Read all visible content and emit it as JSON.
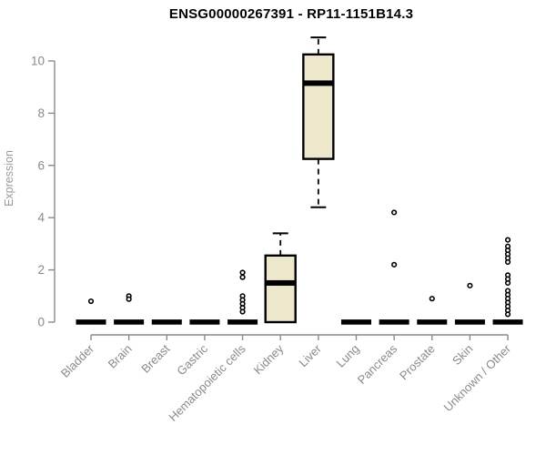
{
  "chart_data": {
    "type": "boxplot",
    "title": "ENSG00000267391 - RP11-1151B14.3",
    "ylabel": "Expression",
    "xlabel": "",
    "ylim": [
      0,
      11
    ],
    "yticks": [
      0,
      2,
      4,
      6,
      8,
      10
    ],
    "grid": false,
    "legend": "none",
    "categories": [
      "Bladder",
      "Brain",
      "Breast",
      "Gastric",
      "Hematopoietic cells",
      "Kidney",
      "Liver",
      "Lung",
      "Pancreas",
      "Prostate",
      "Skin",
      "Unknown / Other"
    ],
    "series": [
      {
        "category": "Bladder",
        "min": 0,
        "q1": 0,
        "median": 0,
        "q3": 0,
        "max": 0,
        "outliers": [
          0.8
        ]
      },
      {
        "category": "Brain",
        "min": 0,
        "q1": 0,
        "median": 0,
        "q3": 0,
        "max": 0,
        "outliers": [
          1.0,
          0.88
        ]
      },
      {
        "category": "Breast",
        "min": 0,
        "q1": 0,
        "median": 0,
        "q3": 0,
        "max": 0,
        "outliers": []
      },
      {
        "category": "Gastric",
        "min": 0,
        "q1": 0,
        "median": 0,
        "q3": 0,
        "max": 0,
        "outliers": []
      },
      {
        "category": "Hematopoietic cells",
        "min": 0,
        "q1": 0,
        "median": 0,
        "q3": 0,
        "max": 0,
        "outliers": [
          1.9,
          1.72,
          1.0,
          0.85,
          0.7,
          0.55,
          0.4
        ]
      },
      {
        "category": "Kidney",
        "min": 0,
        "q1": 0,
        "median": 1.5,
        "q3": 2.55,
        "max": 3.4,
        "outliers": []
      },
      {
        "category": "Liver",
        "min": 4.4,
        "q1": 6.25,
        "median": 9.15,
        "q3": 10.25,
        "max": 10.9,
        "outliers": []
      },
      {
        "category": "Lung",
        "min": 0,
        "q1": 0,
        "median": 0,
        "q3": 0,
        "max": 0,
        "outliers": []
      },
      {
        "category": "Pancreas",
        "min": 0,
        "q1": 0,
        "median": 0,
        "q3": 0,
        "max": 0,
        "outliers": [
          4.2,
          2.2
        ]
      },
      {
        "category": "Prostate",
        "min": 0,
        "q1": 0,
        "median": 0,
        "q3": 0,
        "max": 0,
        "outliers": [
          0.9
        ]
      },
      {
        "category": "Skin",
        "min": 0,
        "q1": 0,
        "median": 0,
        "q3": 0,
        "max": 0,
        "outliers": [
          1.4
        ]
      },
      {
        "category": "Unknown / Other",
        "min": 0,
        "q1": 0,
        "median": 0,
        "q3": 0,
        "max": 0,
        "outliers": [
          3.15,
          2.9,
          2.75,
          2.6,
          2.45,
          2.3,
          1.8,
          1.65,
          1.5,
          1.2,
          1.05,
          0.9,
          0.75,
          0.6,
          0.45,
          0.3
        ]
      }
    ],
    "colors": {
      "box_fill": "#EDE8CC",
      "box_stroke": "#000000",
      "median": "#000000",
      "outlier_stroke": "#000000",
      "axis": "#8a8a8a",
      "tick_label": "#8a8a8a",
      "axis_label": "#9a9a9a",
      "title": "#000000",
      "background": "#ffffff"
    }
  }
}
